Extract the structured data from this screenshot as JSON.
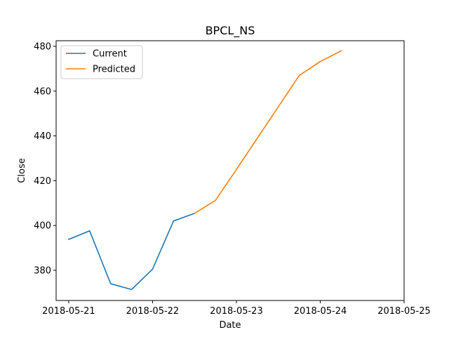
{
  "chart_data": {
    "type": "line",
    "title": "BPCL_NS",
    "xlabel": "Date",
    "ylabel": "Close",
    "xlim": [
      "2018-05-20T20:24",
      "2018-05-25T00:00"
    ],
    "ylim": [
      366.5,
      482.5
    ],
    "x_ticks": [
      "2018-05-21",
      "2018-05-22",
      "2018-05-23",
      "2018-05-24",
      "2018-05-25"
    ],
    "y_ticks": [
      380,
      400,
      420,
      440,
      460,
      480
    ],
    "grid": false,
    "legend": {
      "position": "top-left"
    },
    "series": [
      {
        "name": "Current",
        "color": "#1f77b4",
        "points": [
          [
            "2018-05-21T00:00",
            393.8
          ],
          [
            "2018-05-21T06:00",
            397.6
          ],
          [
            "2018-05-21T12:00",
            374.0
          ],
          [
            "2018-05-21T18:00",
            371.4
          ],
          [
            "2018-05-22T00:00",
            380.5
          ],
          [
            "2018-05-22T06:00",
            402.0
          ],
          [
            "2018-05-22T12:00",
            405.4
          ]
        ]
      },
      {
        "name": "Predicted",
        "color": "#ff7f0e",
        "points": [
          [
            "2018-05-22T12:00",
            405.4
          ],
          [
            "2018-05-22T18:00",
            411.2
          ],
          [
            "2018-05-23T00:00",
            425.0
          ],
          [
            "2018-05-23T06:00",
            439.0
          ],
          [
            "2018-05-23T12:00",
            453.0
          ],
          [
            "2018-05-23T18:00",
            467.0
          ],
          [
            "2018-05-24T00:00",
            473.2
          ],
          [
            "2018-05-24T06:00",
            478.0
          ]
        ]
      }
    ]
  }
}
